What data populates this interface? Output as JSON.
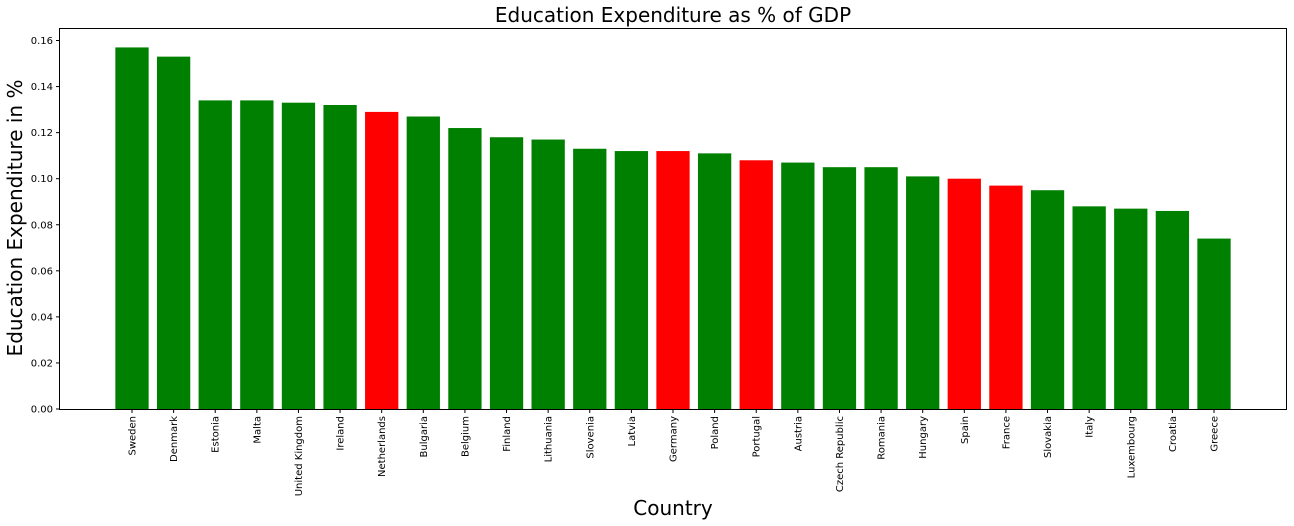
{
  "chart_data": {
    "type": "bar",
    "title": "Education Expenditure as % of GDP",
    "xlabel": "Country",
    "ylabel": "Education Expenditure in %",
    "ylim": [
      0,
      0.165
    ],
    "yticks": [
      "0.00",
      "0.02",
      "0.04",
      "0.06",
      "0.08",
      "0.10",
      "0.12",
      "0.14",
      "0.16"
    ],
    "grid": false,
    "colors": {
      "default": "#008000",
      "highlight": "#ff0000"
    },
    "categories": [
      "Sweden",
      "Denmark",
      "Estonia",
      "Malta",
      "United Kingdom",
      "Ireland",
      "Netherlands",
      "Bulgaria",
      "Belgium",
      "Finland",
      "Lithuania",
      "Slovenia",
      "Latvia",
      "Germany",
      "Poland",
      "Portugal",
      "Austria",
      "Czech Republic",
      "Romania",
      "Hungary",
      "Spain",
      "France",
      "Slovakia",
      "Italy",
      "Luxembourg",
      "Croatia",
      "Greece"
    ],
    "values": [
      0.157,
      0.153,
      0.134,
      0.134,
      0.133,
      0.132,
      0.129,
      0.127,
      0.122,
      0.118,
      0.117,
      0.113,
      0.112,
      0.112,
      0.111,
      0.108,
      0.107,
      0.105,
      0.105,
      0.101,
      0.1,
      0.097,
      0.095,
      0.088,
      0.087,
      0.086,
      0.074
    ],
    "highlighted": [
      "Netherlands",
      "Germany",
      "Portugal",
      "Spain",
      "France"
    ]
  }
}
